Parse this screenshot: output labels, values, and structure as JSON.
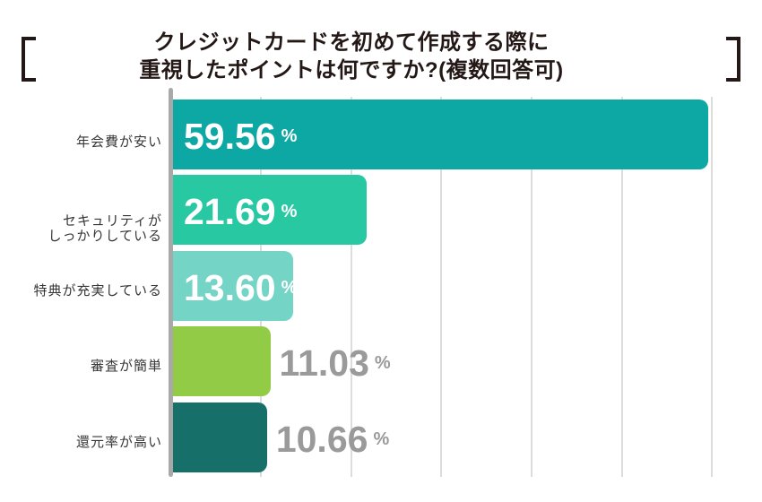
{
  "title": {
    "line1": "クレジットカードを初めて作成する際に",
    "line2": "重視したポイントは何ですか?(複数回答可)"
  },
  "chart_data": {
    "type": "bar",
    "orientation": "horizontal",
    "title": "クレジットカードを初めて作成する際に重視したポイントは何ですか?(複数回答可)",
    "categories": [
      "年会費が安い",
      "セキュリティが\nしっかりしている",
      "特典が充実している",
      "審査が簡単",
      "還元率が高い"
    ],
    "values": [
      59.56,
      21.69,
      13.6,
      11.03,
      10.66
    ],
    "value_labels": [
      "59.56",
      "21.69",
      "13.60",
      "11.03",
      "10.66"
    ],
    "unit": "%",
    "bar_colors": [
      "#0da8a3",
      "#28c8a3",
      "#74d4c6",
      "#92cc47",
      "#166f68"
    ],
    "value_inside": [
      true,
      true,
      true,
      false,
      false
    ],
    "colors": {
      "inside_value": "#ffffff",
      "outside_value": "#9a9a9a",
      "category_label": "#363636",
      "axis": "#a9a9a9",
      "gridline": "#dcdcdc",
      "title": "#231815"
    },
    "xlim": [
      0,
      63
    ],
    "gridlines_pct": [
      10,
      20,
      30,
      40,
      50,
      60
    ],
    "xlabel": "",
    "ylabel": "",
    "legend": "none",
    "grid": "vertical gridlines, no tick labels"
  }
}
